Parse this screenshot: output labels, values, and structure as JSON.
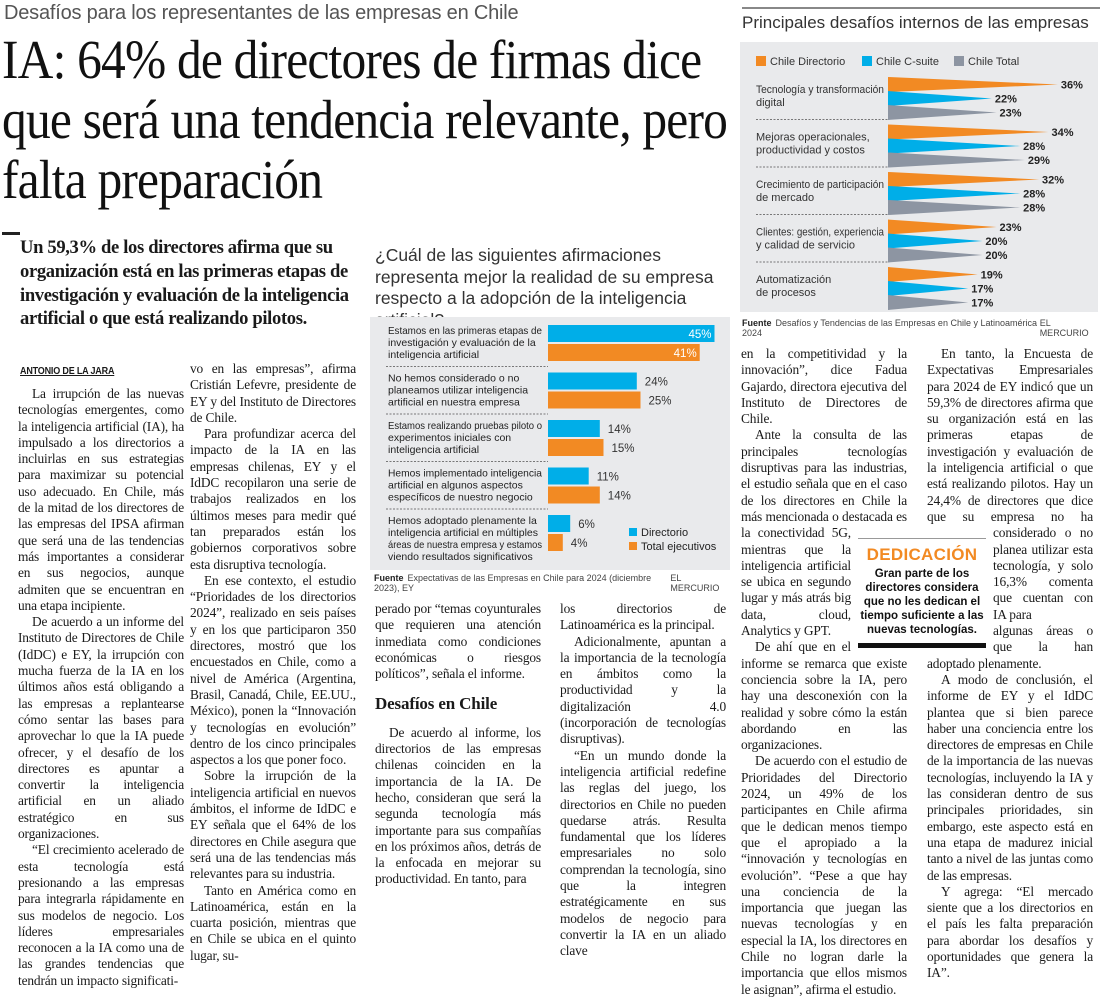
{
  "kicker": "Desafíos para los representantes de las empresas en Chile",
  "headline": "IA: 64% de directores de firmas dice que será una tendencia relevante, pero falta preparación",
  "lead": "Un 59,3% de los directores afirma que su organización está en las primeras etapas de investigación y evaluación de la inteligencia artificial o que está realizando pilotos.",
  "byline": "ANTONIO DE LA JARA",
  "body": {
    "col1": [
      "La irrupción de las nuevas tecnologías emergentes, como la inteligencia artificial (IA), ha impulsado a los directorios a incluirlas en sus estrategias para maximizar su potencial uso adecuado. En Chile, más de la mitad de los directores de las empresas del IPSA afirman que será una de las tendencias más importantes a considerar en sus negocios, aunque admiten que se encuentran en una etapa incipiente.",
      "De acuerdo a un informe del Instituto de Directores de Chile (IdDC) e EY, la irrupción con mucha fuerza de la IA en los últimos años está obligando a las empresas a replantearse cómo sentar las bases para aprovechar lo que la IA puede ofrecer, y el desafío de los directores es apuntar a convertir la inteligencia artificial en un aliado estratégico en sus organizaciones.",
      "“El crecimiento acelerado de esta tecnología está presionando a las empresas para integrarla rápidamente en sus modelos de negocio. Los líderes empresariales reconocen a la IA como una de las grandes tendencias que tendrán un impacto significati-"
    ],
    "col2": [
      "vo en las empresas”, afirma Cristián Lefevre, presidente de EY y del Instituto de Directores de Chile.",
      "Para profundizar acerca del impacto de la IA en las empresas chilenas, EY y el IdDC recopilaron una serie de trabajos realizados en los últimos meses para medir qué tan preparados están los gobiernos corporativos sobre esta disruptiva tecnología.",
      "En ese contexto, el estudio “Prioridades de los directorios 2024”, realizado en seis países y en los que participaron 350 directores, mostró que los encuestados en Chile, como a nivel de América (Argentina, Brasil, Canadá, Chile, EE.UU., México), ponen la “Innovación y tecnologías en evolución” dentro de los cinco principales aspectos a los que poner foco.",
      "Sobre la irrupción de la inteligencia artificial en nuevos ámbitos, el informe de IdDC e EY señala que el 64% de los directores en Chile asegura que será una de las tendencias más relevantes para su industria.",
      "Tanto en América como en Latinoamérica, están en la cuarta posición, mientras que en Chile se ubica en el quinto lugar, su-"
    ],
    "col3": [
      "perado por “temas coyunturales que requieren una atención inmediata como condiciones económicas o riesgos políticos”, señala el informe.",
      "De acuerdo al informe, los directorios de las empresas chilenas coinciden en la importancia de la IA. De hecho, consideran que será la segunda tecnología más importante para sus compañías en los próximos años, detrás de la enfocada en mejorar su productividad. En tanto, para"
    ],
    "subhead": "Desafíos en Chile",
    "col4": [
      "los directorios de Latinoamérica es la principal.",
      "Adicionalmente, apuntan a la importancia de la tecnología en ámbitos como la productividad y la digitalización 4.0 (incorporación de tecnologías disruptivas).",
      "“En un mundo donde la inteligencia artificial redefine las reglas del juego, los directorios en Chile no pueden quedarse atrás. Resulta fundamental que los líderes empresariales no solo comprendan la tecnología, sino que la integren estratégicamente en sus modelos de negocio para convertir la IA en un aliado clave"
    ],
    "col5": [
      "en la competitividad y la innovación”, dice Fadua Gajardo, directora ejecutiva del Instituto de Directores de Chile.",
      "Ante la consulta de las principales tecnologías disruptivas para las industrias, el estudio señala que en el caso de los directores en Chile la más mencionada o destacada es la conectividad 5G, mientras que la inteligencia artificial se ubica en segundo lugar y más atrás big data, cloud, Analytics y GPT.",
      "De ahí que en el informe se remarca que existe conciencia sobre la IA, pero hay una desconexión con la realidad y sobre cómo la están abordando en las organizaciones.",
      "De acuerdo con el estudio de Prioridades del Directorio 2024, un 49% de los participantes en Chile afirma que le dedican menos tiempo que el apropiado a la “innovación y tecnologías en evolución”. “Pese a que hay una conciencia de la importancia que juegan las nuevas tecnologías y en especial la IA, los directores en Chile no logran darle la importancia que ellos mismos le asignan”, afirma el estudio."
    ],
    "col6": [
      "En tanto, la Encuesta de Expectativas Empresariales para 2024 de EY indicó que un 59,3% de directores afirma que su organización está en las primeras etapas de investigación y evaluación de la inteligencia artificial o que está realizando pilotos. Hay un 24,4% de directores que dice que su empresa no ha considerado o no planea utilizar esta tecnología, y solo 16,3% comenta que cuentan con IA para",
      "algunas áreas o que la han adoptado plenamente.",
      "A modo de conclusión, el informe de EY y el IdDC plantea que si bien parece haber una conciencia entre los directores de empresas en Chile de la importancia de las nuevas tecnologías, incluyendo la IA y las consideran dentro de sus principales prioridades, sin embargo, este aspecto está en una etapa de madurez inicial tanto a nivel de las juntas como de las empresas.",
      "Y agrega: “El mercado siente que a los directorios en el país les falta preparación para abordar los desafíos y oportunidades que genera la IA”."
    ]
  },
  "sidebar": {
    "title": "DEDICACIÓN",
    "text": "Gran parte de los directores considera que no les dedican el tiempo suficiente a las nuevas tecnologías."
  },
  "question": "¿Cuál de las siguientes afirmaciones representa mejor la realidad de su empresa respecto a la adopción de la inteligencia artificial?",
  "brand": "EL MERCURIO",
  "fuente_label": "Fuente",
  "chart_data": [
    {
      "type": "bar",
      "title": "Principales desafíos internos de las empresas",
      "categories": [
        [
          "Tecnología y transformación",
          "digital"
        ],
        [
          "Mejoras operacionales,",
          "productividad y costos"
        ],
        [
          "Crecimiento de participación",
          "de mercado"
        ],
        [
          "Clientes: gestión, experiencia",
          "y calidad de servicio"
        ],
        [
          "Automatización",
          "de procesos"
        ]
      ],
      "series": [
        {
          "name": "Chile Directorio",
          "color": "#f28a23",
          "values": [
            36,
            34,
            32,
            23,
            19
          ]
        },
        {
          "name": "Chile C-suite",
          "color": "#00aee8",
          "values": [
            22,
            28,
            28,
            20,
            17
          ]
        },
        {
          "name": "Chile Total",
          "color": "#8d95a2",
          "values": [
            23,
            29,
            28,
            20,
            17
          ]
        }
      ],
      "unit": "%",
      "legend": "top",
      "source": "Desafíos y Tendencias de las Empresas en Chile y Latinoamérica 2024"
    },
    {
      "type": "bar",
      "categories": [
        [
          "Estamos en las primeras etapas de",
          "investigación y evaluación de la",
          "inteligencia artificial"
        ],
        [
          "No hemos considerado o no",
          "planeamos utilizar inteligencia",
          "artificial en nuestra empresa"
        ],
        [
          "Estamos realizando pruebas piloto o",
          "experimentos iniciales con",
          "inteligencia artificial"
        ],
        [
          "Hemos implementado inteligencia",
          "artificial en algunos aspectos",
          "específicos de nuestro negocio"
        ],
        [
          "Hemos adoptado plenamente la",
          "inteligencia artificial en múltiples",
          "áreas de nuestra empresa y estamos",
          "viendo resultados significativos"
        ]
      ],
      "series": [
        {
          "name": "Directorio",
          "color": "#00aee8",
          "values": [
            45,
            24,
            14,
            11,
            6
          ]
        },
        {
          "name": "Total ejecutivos",
          "color": "#f28a23",
          "values": [
            41,
            25,
            15,
            14,
            4
          ]
        }
      ],
      "unit": "%",
      "legend": "bottom-right",
      "source": "Expectativas de las Empresas en Chile para 2024 (diciembre 2023), EY"
    }
  ]
}
